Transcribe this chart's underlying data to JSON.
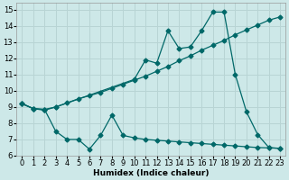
{
  "xlabel": "Humidex (Indice chaleur)",
  "bg_color": "#cde8e8",
  "grid_color": "#b8d4d4",
  "line_color": "#006868",
  "xlim": [
    -0.5,
    23.5
  ],
  "ylim": [
    6,
    15.4
  ],
  "yticks": [
    6,
    7,
    8,
    9,
    10,
    11,
    12,
    13,
    14,
    15
  ],
  "xticks": [
    0,
    1,
    2,
    3,
    4,
    5,
    6,
    7,
    8,
    9,
    10,
    11,
    12,
    13,
    14,
    15,
    16,
    17,
    18,
    19,
    20,
    21,
    22,
    23
  ],
  "series_upper": {
    "x": [
      0,
      1,
      2,
      3,
      10,
      11,
      12,
      13,
      14,
      15,
      16,
      17,
      18,
      19,
      20,
      21,
      22,
      23
    ],
    "y": [
      9.2,
      8.9,
      8.8,
      9.0,
      10.7,
      11.9,
      11.7,
      13.7,
      12.6,
      12.7,
      13.7,
      14.85,
      14.85,
      11.0,
      8.7,
      7.3,
      6.5,
      6.45
    ]
  },
  "series_mid": {
    "x": [
      0,
      1,
      2,
      3,
      4,
      5,
      6,
      7,
      8,
      9,
      10,
      11,
      12,
      13,
      14,
      15,
      16,
      17,
      18,
      19,
      20,
      21,
      22,
      23
    ],
    "y": [
      9.2,
      8.9,
      8.85,
      9.0,
      9.25,
      9.5,
      9.7,
      9.9,
      10.15,
      10.4,
      10.65,
      10.9,
      11.2,
      11.5,
      11.85,
      12.15,
      12.5,
      12.8,
      13.1,
      13.45,
      13.75,
      14.05,
      14.35,
      14.55
    ]
  },
  "series_lower": {
    "x": [
      0,
      1,
      2,
      3,
      4,
      5,
      6,
      7,
      8,
      9,
      10,
      11,
      12,
      13,
      14,
      15,
      16,
      17,
      18,
      19,
      20,
      21,
      22,
      23
    ],
    "y": [
      9.2,
      8.9,
      8.85,
      7.5,
      7.0,
      7.0,
      6.4,
      7.25,
      8.5,
      7.25,
      7.1,
      7.0,
      6.95,
      6.9,
      6.85,
      6.8,
      6.75,
      6.7,
      6.65,
      6.6,
      6.55,
      6.5,
      6.48,
      6.45
    ]
  }
}
